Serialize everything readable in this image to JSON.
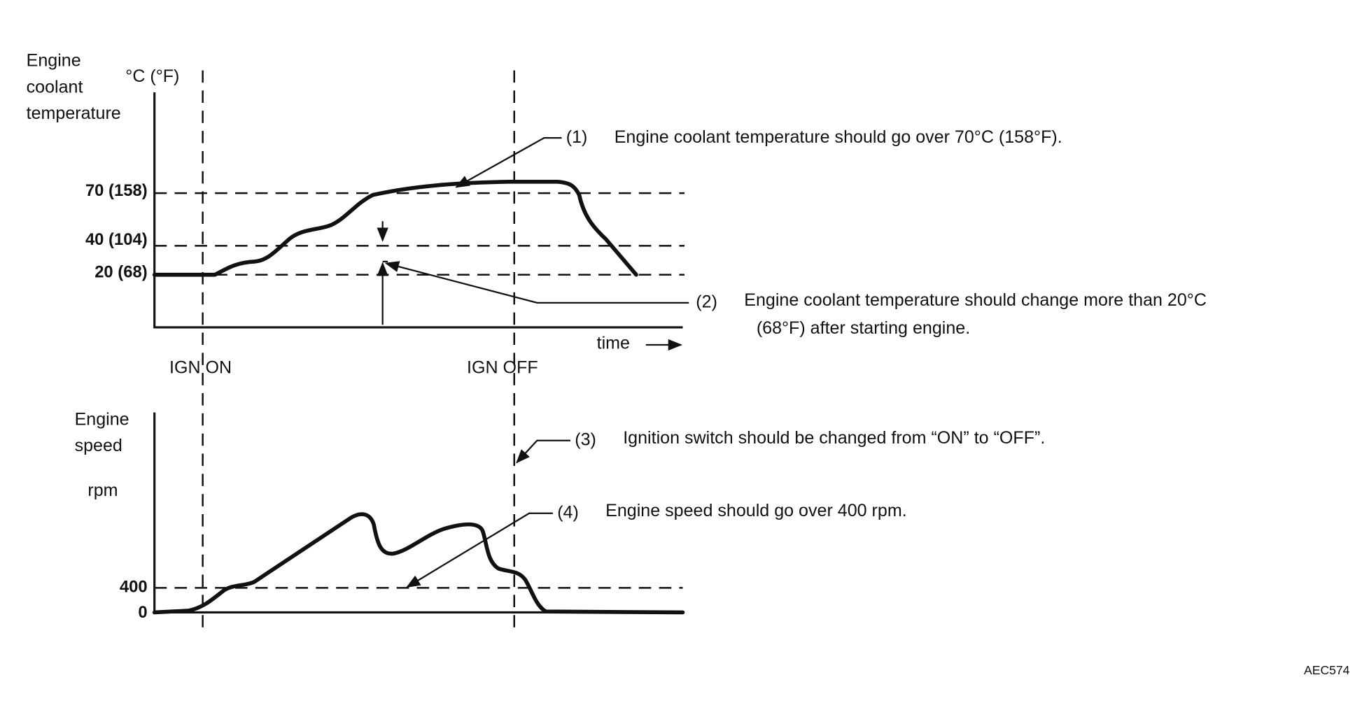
{
  "temperature_chart": {
    "y_label": [
      "Engine",
      "coolant",
      "temperature"
    ],
    "unit": "°C (°F)",
    "levels": [
      "70 (158)",
      "40 (104)",
      "20 (68)"
    ],
    "x_label": "time"
  },
  "markers": {
    "ign_on": "IGN ON",
    "ign_off": "IGN OFF"
  },
  "speed_chart": {
    "y_label": [
      "Engine",
      "speed"
    ],
    "unit": "rpm",
    "levels": [
      "400",
      "0"
    ]
  },
  "notes": [
    {
      "number": "(1)",
      "text": [
        "Engine coolant temperature should go over 70°C (158°F)."
      ]
    },
    {
      "number": "(2)",
      "text": [
        "Engine coolant temperature should change more than 20°C",
        "(68°F) after starting engine."
      ]
    },
    {
      "number": "(3)",
      "text": [
        "Ignition switch should be changed from “ON” to “OFF”."
      ]
    },
    {
      "number": "(4)",
      "text": [
        "Engine speed should go over 400 rpm."
      ]
    }
  ],
  "figure_id": "AEC574"
}
